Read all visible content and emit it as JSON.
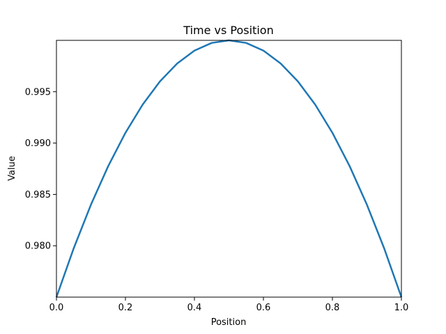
{
  "chart_data": {
    "type": "line",
    "title": "Time vs Position",
    "xlabel": "Position",
    "ylabel": "Value",
    "xlim": [
      0.0,
      1.0
    ],
    "ylim": [
      0.975,
      1.0
    ],
    "xticks": [
      0.0,
      0.2,
      0.4,
      0.6,
      0.8,
      1.0
    ],
    "xtick_labels": [
      "0.0",
      "0.2",
      "0.4",
      "0.6",
      "0.8",
      "1.0"
    ],
    "yticks": [
      0.98,
      0.985,
      0.99,
      0.995
    ],
    "ytick_labels": [
      "0.980",
      "0.985",
      "0.990",
      "0.995"
    ],
    "grid": false,
    "series": [
      {
        "name": "value",
        "color": "#1f77b4",
        "x": [
          0.0,
          0.05,
          0.1,
          0.15,
          0.2,
          0.25,
          0.3,
          0.35,
          0.4,
          0.45,
          0.5,
          0.55,
          0.6,
          0.65,
          0.7,
          0.75,
          0.8,
          0.85,
          0.9,
          0.95,
          1.0
        ],
        "y": [
          0.975,
          0.97975,
          0.984,
          0.98775,
          0.991,
          0.99375,
          0.996,
          0.99775,
          0.999,
          0.99975,
          1.0,
          0.99975,
          0.999,
          0.99775,
          0.996,
          0.99375,
          0.991,
          0.98775,
          0.984,
          0.97975,
          0.975
        ]
      }
    ]
  }
}
